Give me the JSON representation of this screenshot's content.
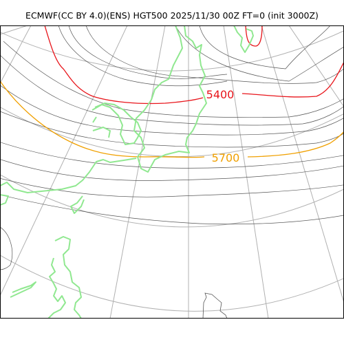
{
  "title": "ECMWF(CC BY 4.0)(ENS) HGT500 2025/11/30 00Z FT=0 (init 3000Z)",
  "contour_labels": {
    "red": "5400",
    "orange": "5700"
  },
  "colors": {
    "contour_red": "#e8141a",
    "contour_orange": "#f0a000",
    "contour_gray": "#555555",
    "coastline": "#90e890",
    "graticule": "#b0b0b0",
    "border": "#000000"
  }
}
